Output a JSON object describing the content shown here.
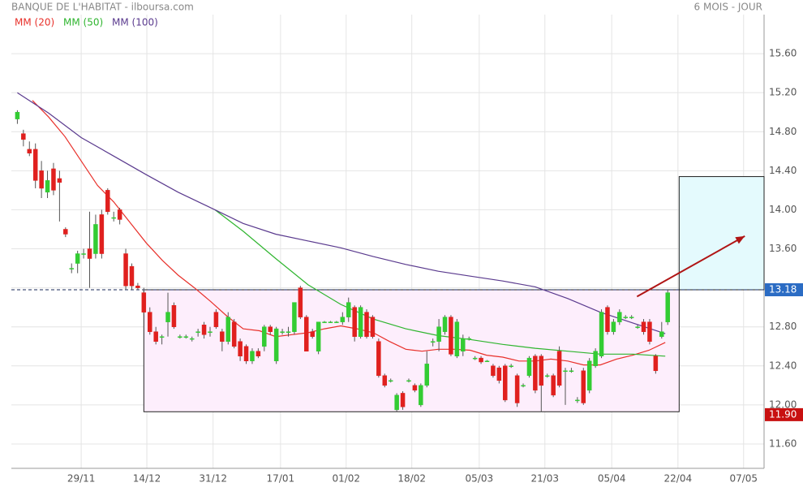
{
  "chart_data": {
    "type": "candlestick",
    "title": "BANQUE DE L'HABITAT - ilboursa.com",
    "subtitle": "6 MOIS - JOUR",
    "up_color": "#33cc33",
    "down_color": "#e0201e",
    "xlim": [
      -1,
      124
    ],
    "xticks": [
      {
        "value": 10.6,
        "label": "29/11"
      },
      {
        "value": 21.5,
        "label": "14/12"
      },
      {
        "value": 32.5,
        "label": "31/12"
      },
      {
        "value": 43.7,
        "label": "17/01"
      },
      {
        "value": 54.6,
        "label": "01/02"
      },
      {
        "value": 65.5,
        "label": "18/02"
      },
      {
        "value": 76.7,
        "label": "05/03"
      },
      {
        "value": 87.6,
        "label": "21/03"
      },
      {
        "value": 98.7,
        "label": "05/04"
      },
      {
        "value": 109.7,
        "label": "22/04"
      },
      {
        "value": 120.6,
        "label": "07/05"
      }
    ],
    "ylim": [
      11.35,
      16.0
    ],
    "yticks": [
      {
        "value": 11.6,
        "label": "11.60"
      },
      {
        "value": 12.0,
        "label": "12.00"
      },
      {
        "value": 12.4,
        "label": "12.40"
      },
      {
        "value": 12.8,
        "label": "12.80"
      },
      {
        "value": 13.2,
        "label": "13.20"
      },
      {
        "value": 13.6,
        "label": "13.60"
      },
      {
        "value": 14.0,
        "label": "14.00"
      },
      {
        "value": 14.4,
        "label": "14.40"
      },
      {
        "value": 14.8,
        "label": "14.80"
      },
      {
        "value": 15.2,
        "label": "15.20"
      },
      {
        "value": 15.6,
        "label": "15.60"
      }
    ],
    "grid": true,
    "x": [
      0,
      1,
      2,
      3,
      4,
      5,
      6,
      7,
      8,
      9,
      10,
      11,
      12,
      13,
      14,
      15,
      16,
      17,
      18,
      19,
      20,
      21,
      22,
      23,
      24,
      25,
      26,
      27,
      28,
      29,
      30,
      31,
      32,
      33,
      34,
      35,
      36,
      37,
      38,
      39,
      40,
      41,
      42,
      43,
      44,
      45,
      46,
      47,
      48,
      49,
      50,
      51,
      52,
      53,
      54,
      55,
      56,
      57,
      58,
      59,
      60,
      61,
      62,
      63,
      64,
      65,
      66,
      67,
      68,
      69,
      70,
      71,
      72,
      73,
      74,
      75,
      76,
      77,
      78,
      79,
      80,
      81,
      82,
      83,
      84,
      85,
      86,
      87,
      88,
      89,
      90,
      91,
      92,
      93,
      94,
      95,
      96,
      97,
      98,
      99,
      100,
      101,
      102,
      103,
      104,
      105,
      106,
      107,
      108
    ],
    "open": [
      14.93,
      14.78,
      14.62,
      14.62,
      14.4,
      14.18,
      14.42,
      14.32,
      13.8,
      13.4,
      13.45,
      13.55,
      13.6,
      13.55,
      13.95,
      14.2,
      13.92,
      14.0,
      13.55,
      13.42,
      13.22,
      13.15,
      12.95,
      12.75,
      12.7,
      12.85,
      13.02,
      12.7,
      12.7,
      12.68,
      12.75,
      12.82,
      12.75,
      12.95,
      12.75,
      12.65,
      12.85,
      12.65,
      12.6,
      12.45,
      12.55,
      12.6,
      12.8,
      12.45,
      12.75,
      12.75,
      12.75,
      13.2,
      12.9,
      12.75,
      12.55,
      12.85,
      12.85,
      12.85,
      12.85,
      12.9,
      13.0,
      12.7,
      12.95,
      12.9,
      12.65,
      12.3,
      12.25,
      11.95,
      12.12,
      12.25,
      12.2,
      12.0,
      12.2,
      12.65,
      12.65,
      12.75,
      12.9,
      12.5,
      12.55,
      12.68,
      12.48,
      12.48,
      12.45,
      12.4,
      12.38,
      12.4,
      12.4,
      12.3,
      12.2,
      12.3,
      12.5,
      12.5,
      12.3,
      12.3,
      12.55,
      12.35,
      12.35,
      12.05,
      12.35,
      12.15,
      12.4,
      12.5,
      13.0,
      12.75,
      12.85,
      12.9,
      12.9,
      12.8,
      12.85,
      12.85,
      12.5,
      12.7,
      12.85
    ],
    "high": [
      15.02,
      14.82,
      14.7,
      14.68,
      14.5,
      14.4,
      14.48,
      14.4,
      13.82,
      13.45,
      13.58,
      13.6,
      13.98,
      13.95,
      14.0,
      14.22,
      13.98,
      14.02,
      13.6,
      13.45,
      13.25,
      13.2,
      13.0,
      12.8,
      12.72,
      13.15,
      13.05,
      12.72,
      12.72,
      12.7,
      12.78,
      12.85,
      12.8,
      12.98,
      12.78,
      12.95,
      12.88,
      12.68,
      12.62,
      12.58,
      12.58,
      12.82,
      12.82,
      12.8,
      12.78,
      12.8,
      13.05,
      13.22,
      12.92,
      12.78,
      12.85,
      12.86,
      12.86,
      12.86,
      12.95,
      13.1,
      13.02,
      13.02,
      12.98,
      12.92,
      12.68,
      12.32,
      12.27,
      12.12,
      12.14,
      12.27,
      12.22,
      12.22,
      12.55,
      12.68,
      12.88,
      12.92,
      12.92,
      12.88,
      12.72,
      12.7,
      12.5,
      12.5,
      12.46,
      12.42,
      12.4,
      12.42,
      12.42,
      12.32,
      12.22,
      12.5,
      12.52,
      12.52,
      12.32,
      12.32,
      12.6,
      12.38,
      12.38,
      12.08,
      12.38,
      12.48,
      12.58,
      12.98,
      13.02,
      12.88,
      12.98,
      12.92,
      12.92,
      12.82,
      12.88,
      12.88,
      12.52,
      12.85,
      13.18
    ],
    "low": [
      14.88,
      14.65,
      14.55,
      14.22,
      14.12,
      14.12,
      14.15,
      13.88,
      13.72,
      13.35,
      13.35,
      13.5,
      13.2,
      13.5,
      13.5,
      13.95,
      13.88,
      13.85,
      13.18,
      13.18,
      13.18,
      12.92,
      12.72,
      12.62,
      12.62,
      12.7,
      12.78,
      12.68,
      12.68,
      12.65,
      12.7,
      12.68,
      12.7,
      12.78,
      12.55,
      12.62,
      12.58,
      12.45,
      12.42,
      12.42,
      12.48,
      12.55,
      12.72,
      12.42,
      12.72,
      12.7,
      12.72,
      12.88,
      12.55,
      12.68,
      12.52,
      12.84,
      12.84,
      12.84,
      12.82,
      12.85,
      12.65,
      12.68,
      12.68,
      12.68,
      12.28,
      12.18,
      12.23,
      11.93,
      11.95,
      12.23,
      12.13,
      11.98,
      12.18,
      12.6,
      12.55,
      12.72,
      12.5,
      12.48,
      12.5,
      12.66,
      12.46,
      12.42,
      12.44,
      12.28,
      12.22,
      12.03,
      12.38,
      11.98,
      12.18,
      12.28,
      12.12,
      11.93,
      12.28,
      12.08,
      12.18,
      12.0,
      12.33,
      12.02,
      12.0,
      12.12,
      12.38,
      12.48,
      12.72,
      12.72,
      12.82,
      12.88,
      12.88,
      12.78,
      12.72,
      12.62,
      12.32,
      12.68,
      12.82
    ],
    "close": [
      15.0,
      14.72,
      14.58,
      14.3,
      14.22,
      14.3,
      14.2,
      14.28,
      13.75,
      13.4,
      13.55,
      13.55,
      13.5,
      13.85,
      13.55,
      13.98,
      13.92,
      13.9,
      13.22,
      13.22,
      13.2,
      12.95,
      12.75,
      12.65,
      12.7,
      12.95,
      12.8,
      12.7,
      12.7,
      12.68,
      12.75,
      12.72,
      12.75,
      12.8,
      12.65,
      12.9,
      12.6,
      12.5,
      12.45,
      12.55,
      12.5,
      12.8,
      12.75,
      12.78,
      12.75,
      12.75,
      13.05,
      12.9,
      12.55,
      12.7,
      12.85,
      12.85,
      12.85,
      12.85,
      12.9,
      13.05,
      12.7,
      13.0,
      12.7,
      12.7,
      12.3,
      12.2,
      12.25,
      12.1,
      11.98,
      12.25,
      12.15,
      12.2,
      12.42,
      12.65,
      12.8,
      12.9,
      12.52,
      12.85,
      12.68,
      12.68,
      12.48,
      12.44,
      12.45,
      12.3,
      12.25,
      12.05,
      12.4,
      12.02,
      12.2,
      12.48,
      12.15,
      12.2,
      12.3,
      12.1,
      12.2,
      12.35,
      12.35,
      12.05,
      12.02,
      12.45,
      12.55,
      12.95,
      12.75,
      12.85,
      12.95,
      12.9,
      12.9,
      12.8,
      12.75,
      12.65,
      12.35,
      12.75,
      13.15
    ],
    "series": [
      {
        "name": "MM (20)",
        "color": "#e8302a",
        "x": [
          2.5,
          5.2,
          7.9,
          10.6,
          13.3,
          16,
          18.7,
          21.4,
          24.1,
          26.7,
          29.4,
          32.1,
          34.8,
          37.5,
          40.2,
          42.9,
          45.6,
          48.3,
          51,
          53.7,
          56.4,
          59.1,
          61.8,
          64.5,
          67.2,
          69.9,
          72.6,
          75.2,
          77.9,
          80.6,
          83.3,
          86,
          88.6,
          91.4,
          94,
          96.8,
          99.5,
          102.2,
          104.9,
          107.6
        ],
        "values": [
          15.12,
          14.95,
          14.75,
          14.5,
          14.25,
          14.08,
          13.87,
          13.66,
          13.48,
          13.33,
          13.2,
          13.06,
          12.91,
          12.78,
          12.76,
          12.7,
          12.72,
          12.74,
          12.78,
          12.81,
          12.78,
          12.74,
          12.65,
          12.57,
          12.55,
          12.57,
          12.57,
          12.56,
          12.51,
          12.49,
          12.45,
          12.45,
          12.47,
          12.45,
          12.41,
          12.41,
          12.47,
          12.51,
          12.56,
          12.64
        ]
      },
      {
        "name": "MM (50)",
        "color": "#2fb52f",
        "x": [
          32.8,
          37.5,
          42.9,
          48.3,
          53.7,
          59.1,
          64.5,
          69.9,
          75.2,
          80.6,
          86,
          91.4,
          96.8,
          102.2,
          107.6
        ],
        "values": [
          14.0,
          13.78,
          13.5,
          13.23,
          13.03,
          12.88,
          12.78,
          12.71,
          12.67,
          12.62,
          12.58,
          12.55,
          12.52,
          12.52,
          12.5
        ]
      },
      {
        "name": "MM (100)",
        "color": "#5a3a8e",
        "x": [
          0,
          5.2,
          10.6,
          16,
          21.4,
          26.7,
          32.8,
          37.5,
          42.9,
          48.3,
          53.7,
          59.1,
          64.5,
          69.9,
          75.2,
          80.6,
          86,
          91.4,
          96.8,
          102.2,
          107.6
        ],
        "values": [
          15.2,
          14.99,
          14.74,
          14.55,
          14.36,
          14.18,
          14.0,
          13.86,
          13.75,
          13.68,
          13.61,
          13.52,
          13.44,
          13.37,
          13.32,
          13.27,
          13.21,
          13.09,
          12.95,
          12.84,
          12.73
        ]
      }
    ],
    "last_price": 13.18,
    "last_price_color": "#2b6cc4",
    "low_price": {
      "value": 11.9,
      "label": "11.90"
    },
    "low_price_color": "#c81010",
    "zones": [
      {
        "x": [
          21,
          109.9
        ],
        "y": [
          11.93,
          13.18
        ],
        "color": "#fdeefc"
      },
      {
        "x": [
          109.9,
          124
        ],
        "y": [
          13.18,
          14.34
        ],
        "color": "#e4fafd"
      }
    ],
    "arrow": {
      "from": [
        102.9,
        13.11
      ],
      "to": [
        120.8,
        13.73
      ],
      "color": "#b01414"
    }
  }
}
